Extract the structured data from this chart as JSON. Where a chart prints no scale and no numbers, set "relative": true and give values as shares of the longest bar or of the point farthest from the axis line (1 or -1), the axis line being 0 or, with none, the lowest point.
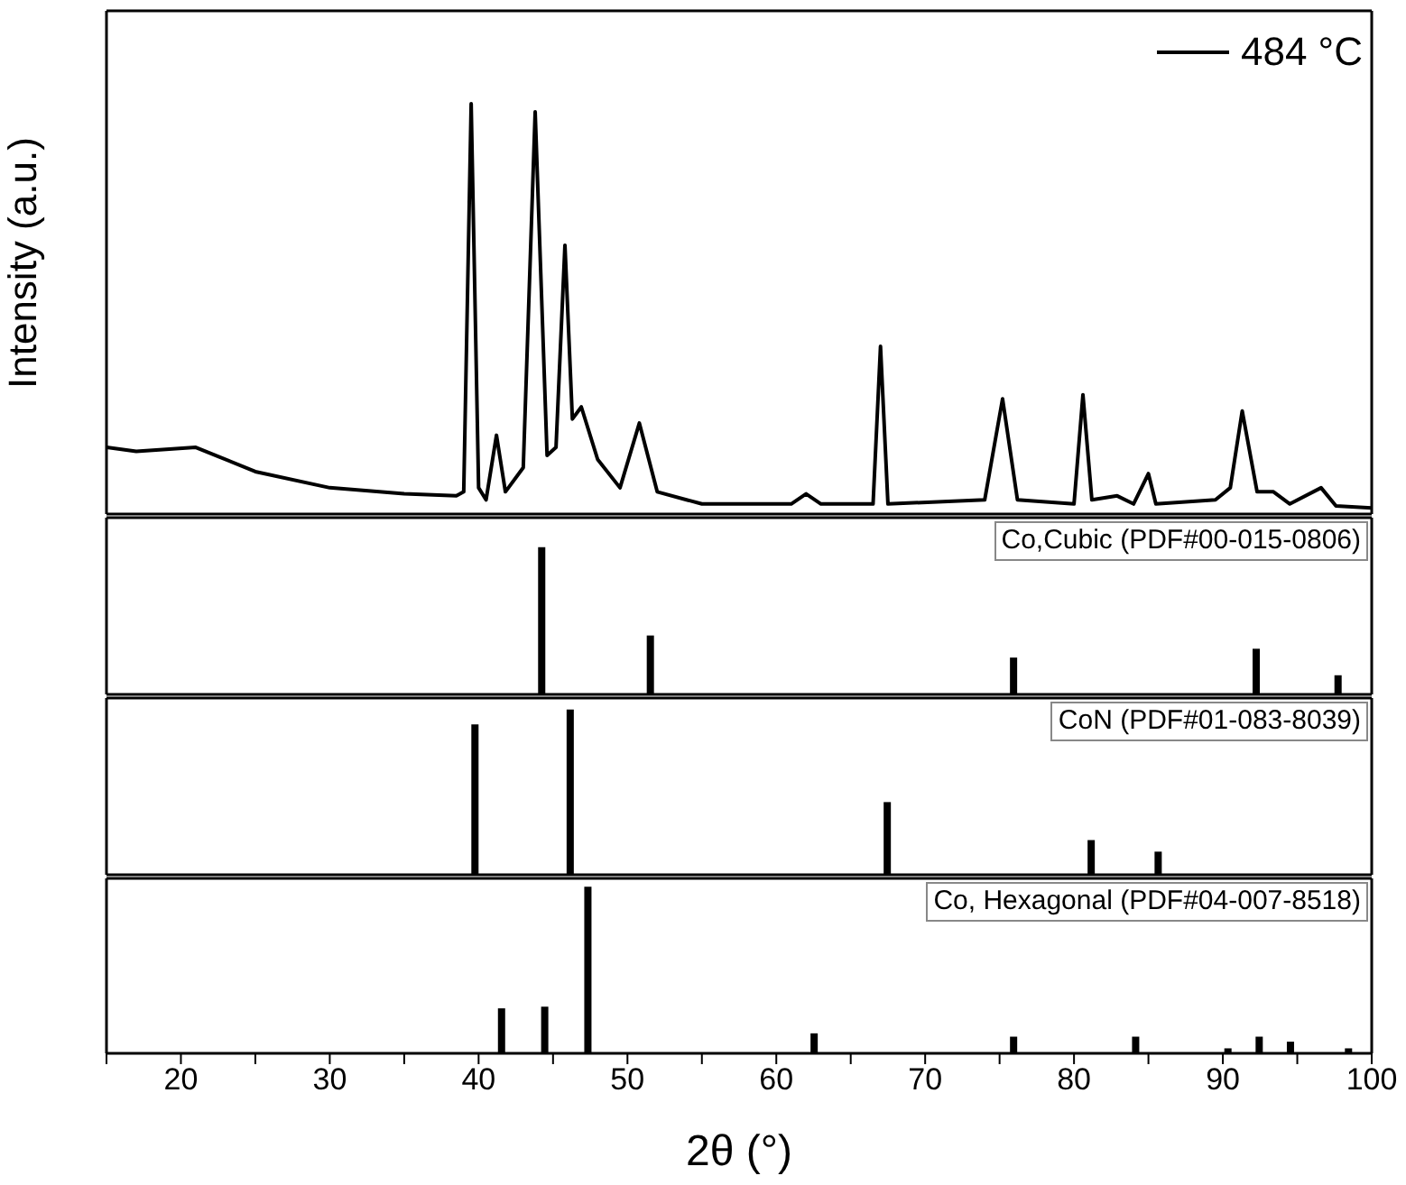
{
  "chart_data": [
    {
      "type": "line",
      "relative": true,
      "xlim": [
        15,
        100
      ],
      "tick_labels": false,
      "ylabel": "Intensity (a.u.)",
      "legend": "top right",
      "series": [
        {
          "name": "484 °C",
          "color": "#000000",
          "x": [
            15,
            17,
            21,
            25,
            30,
            35,
            38.5,
            39.0,
            39.5,
            40.0,
            40.5,
            41.2,
            41.8,
            43,
            43.8,
            44.6,
            45.2,
            45.8,
            46.3,
            46.9,
            48,
            49.5,
            50.8,
            52,
            55,
            61,
            62,
            63,
            66.5,
            67,
            67.5,
            74,
            75.2,
            76.2,
            80,
            80.6,
            81.2,
            82.9,
            84,
            85,
            85.5,
            89.5,
            90.5,
            91.3,
            92.3,
            93.4,
            94.5,
            96.6,
            97.6,
            100
          ],
          "values": [
            0.15,
            0.14,
            0.15,
            0.09,
            0.05,
            0.035,
            0.03,
            0.04,
            1.0,
            0.05,
            0.02,
            0.18,
            0.04,
            0.1,
            0.98,
            0.13,
            0.15,
            0.65,
            0.22,
            0.25,
            0.12,
            0.05,
            0.21,
            0.04,
            0.01,
            0.01,
            0.035,
            0.01,
            0.01,
            0.4,
            0.01,
            0.02,
            0.27,
            0.02,
            0.01,
            0.28,
            0.02,
            0.03,
            0.01,
            0.085,
            0.01,
            0.02,
            0.05,
            0.24,
            0.04,
            0.04,
            0.01,
            0.05,
            0.005,
            0
          ]
        }
      ]
    },
    {
      "type": "bar",
      "relative": true,
      "xlim": [
        15,
        100
      ],
      "tick_labels": false,
      "annotations": [
        "Co,Cubic (PDF#00-015-0806)"
      ],
      "series": [
        {
          "color": "#000000",
          "x": [
            44.2,
            51.5,
            75.9,
            92.2,
            97.7
          ],
          "values": [
            1,
            0.4,
            0.25,
            0.31,
            0.13
          ]
        }
      ]
    },
    {
      "type": "bar",
      "relative": true,
      "xlim": [
        15,
        100
      ],
      "tick_labels": false,
      "annotations": [
        "CoN (PDF#01-083-8039)"
      ],
      "series": [
        {
          "color": "#000000",
          "x": [
            39.7,
            46.1,
            67.4,
            81.1,
            85.6
          ],
          "values": [
            0.91,
            1,
            0.44,
            0.21,
            0.14
          ]
        }
      ]
    },
    {
      "type": "bar",
      "relative": true,
      "xlim": [
        15,
        100
      ],
      "tick_labels": "x",
      "xlabel": "2θ (°)",
      "annotations": [
        "Co, Hexagonal (PDF#04-007-8518)"
      ],
      "xticks": [
        {
          "value": 15,
          "label": null
        },
        20,
        {
          "value": 25,
          "label": null
        },
        30,
        {
          "value": 35,
          "label": null
        },
        40,
        {
          "value": 45,
          "label": null
        },
        50,
        {
          "value": 55,
          "label": null
        },
        60,
        {
          "value": 65,
          "label": null
        },
        70,
        {
          "value": 75,
          "label": null
        },
        80,
        {
          "value": 85,
          "label": null
        },
        90,
        {
          "value": 95,
          "label": null
        },
        100
      ],
      "series": [
        {
          "color": "#000000",
          "x": [
            41.5,
            44.4,
            47.3,
            62.5,
            75.9,
            84.1,
            90.3,
            92.4,
            94.5,
            98.4
          ],
          "values": [
            0.27,
            0.28,
            1,
            0.12,
            0.1,
            0.1,
            0.03,
            0.1,
            0.07,
            0.03
          ]
        }
      ]
    }
  ]
}
